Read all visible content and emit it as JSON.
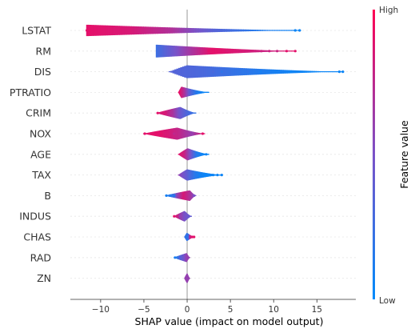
{
  "chart_data": {
    "type": "violin",
    "xlabel": "SHAP value (impact on model output)",
    "xticks": [
      -10,
      -5,
      0,
      5,
      10,
      15
    ],
    "xlim": [
      -13.5,
      19.5
    ],
    "colorbar": {
      "title": "Feature value",
      "high_label": "High",
      "low_label": "Low"
    },
    "colors": {
      "low": "#008bfb",
      "high": "#ff0052",
      "zero_line": "#999999",
      "row_grid": "#e6e6e6",
      "axis": "#333333"
    },
    "features": [
      {
        "name": "LSTAT",
        "range": [
          -11.5,
          13.0
        ],
        "outliers": [
          -11.6,
          -11.2,
          -10.8,
          12.5,
          13.0
        ],
        "hue": [
          0.9,
          0.85,
          0.7,
          0.35,
          0.15,
          0.05
        ]
      },
      {
        "name": "RM",
        "range": [
          -3.5,
          12.5
        ],
        "outliers": [
          2.5,
          3.5,
          4.6,
          8.6,
          9.5,
          10.4,
          11.5,
          12.5
        ],
        "hue": [
          0.25,
          0.6,
          0.9,
          0.85,
          0.8,
          0.9
        ]
      },
      {
        "name": "DIS",
        "range": [
          -2.0,
          18.0
        ],
        "outliers": [
          3.0,
          4.0,
          6.0,
          7.0,
          8.5,
          11.0,
          12.0,
          17.6,
          18.0
        ],
        "hue": [
          0.35,
          0.3,
          0.2,
          0.1,
          0.05,
          0.05
        ]
      },
      {
        "name": "PTRATIO",
        "range": [
          -1.0,
          2.5
        ],
        "outliers": [],
        "hue": [
          0.95,
          0.7,
          0.35,
          0.15,
          0.05,
          0.05
        ]
      },
      {
        "name": "CRIM",
        "range": [
          -3.5,
          1.0
        ],
        "outliers": [
          -3.4,
          -3.0,
          -2.5,
          -1.8
        ],
        "hue": [
          0.9,
          0.85,
          0.7,
          0.45,
          0.3,
          0.2
        ]
      },
      {
        "name": "NOX",
        "range": [
          -5.0,
          2.0
        ],
        "outliers": [
          -4.9,
          -3.0,
          -2.5,
          -1.5,
          1.8
        ],
        "hue": [
          0.9,
          0.9,
          0.85,
          0.75,
          0.6,
          0.9
        ]
      },
      {
        "name": "AGE",
        "range": [
          -1.0,
          2.5
        ],
        "outliers": [
          1.2,
          2.2
        ],
        "hue": [
          0.9,
          0.8,
          0.5,
          0.15,
          0.05,
          0.05
        ]
      },
      {
        "name": "TAX",
        "range": [
          -1.0,
          4.0
        ],
        "outliers": [
          1.5,
          2.0,
          2.5,
          3.0,
          3.5,
          4.0
        ],
        "hue": [
          0.6,
          0.4,
          0.15,
          0.05,
          0.05,
          0.05
        ]
      },
      {
        "name": "B",
        "range": [
          -2.5,
          1.0
        ],
        "outliers": [
          -2.4,
          -2.0,
          -1.5,
          0.8
        ],
        "hue": [
          0.1,
          0.15,
          0.6,
          0.85,
          0.7,
          0.5
        ]
      },
      {
        "name": "INDUS",
        "range": [
          -1.5,
          0.5
        ],
        "outliers": [
          -1.5,
          -1.2,
          -0.8
        ],
        "hue": [
          0.9,
          0.8,
          0.6,
          0.5,
          0.45,
          0.4
        ]
      },
      {
        "name": "CHAS",
        "range": [
          -0.3,
          0.8
        ],
        "outliers": [
          0.4,
          0.6,
          0.8
        ],
        "hue": [
          0.2,
          0.2,
          0.2,
          0.8,
          0.9,
          0.9
        ]
      },
      {
        "name": "RAD",
        "range": [
          -1.5,
          0.3
        ],
        "outliers": [
          -1.4,
          -1.1,
          -0.8
        ],
        "hue": [
          0.1,
          0.2,
          0.35,
          0.45,
          0.6,
          0.6
        ]
      },
      {
        "name": "ZN",
        "range": [
          -0.3,
          0.3
        ],
        "outliers": [],
        "hue": [
          0.6,
          0.6,
          0.6,
          0.6,
          0.6,
          0.6
        ]
      }
    ]
  }
}
